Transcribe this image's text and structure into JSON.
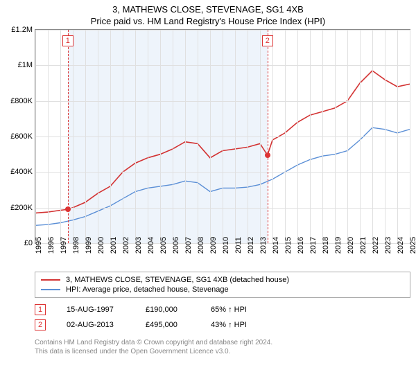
{
  "title": "3, MATHEWS CLOSE, STEVENAGE, SG1 4XB",
  "subtitle": "Price paid vs. HM Land Registry's House Price Index (HPI)",
  "chart": {
    "type": "line",
    "ylim": [
      0,
      1200000
    ],
    "ytick_step": 200000,
    "ytick_labels": [
      "£0",
      "£200K",
      "£400K",
      "£600K",
      "£800K",
      "£1M",
      "£1.2M"
    ],
    "xlim": [
      1995,
      2025
    ],
    "xticks": [
      1995,
      1996,
      1997,
      1998,
      1999,
      2000,
      2001,
      2002,
      2003,
      2004,
      2005,
      2006,
      2007,
      2008,
      2009,
      2010,
      2011,
      2012,
      2013,
      2014,
      2015,
      2016,
      2017,
      2018,
      2019,
      2020,
      2021,
      2022,
      2023,
      2024,
      2025
    ],
    "background_color": "#ffffff",
    "grid_color": "#e0e0e0",
    "band_color": "#eef4fb",
    "band": {
      "start": 1997.6,
      "end": 2013.6
    },
    "series": [
      {
        "name": "price_paid",
        "label": "3, MATHEWS CLOSE, STEVENAGE, SG1 4XB (detached house)",
        "color": "#d33333",
        "width": 1.6,
        "x": [
          1995,
          1996,
          1997,
          1997.6,
          1998,
          1999,
          2000,
          2001,
          2002,
          2003,
          2004,
          2005,
          2006,
          2007,
          2008,
          2009,
          2010,
          2011,
          2012,
          2013,
          2013.6,
          2014,
          2015,
          2016,
          2017,
          2018,
          2019,
          2020,
          2021,
          2022,
          2023,
          2024,
          2025
        ],
        "y": [
          170000,
          175000,
          185000,
          190000,
          200000,
          230000,
          280000,
          320000,
          400000,
          450000,
          480000,
          500000,
          530000,
          570000,
          560000,
          480000,
          520000,
          530000,
          540000,
          560000,
          495000,
          580000,
          620000,
          680000,
          720000,
          740000,
          760000,
          800000,
          900000,
          970000,
          920000,
          880000,
          895000
        ]
      },
      {
        "name": "hpi",
        "label": "HPI: Average price, detached house, Stevenage",
        "color": "#5b8fd6",
        "width": 1.4,
        "x": [
          1995,
          1996,
          1997,
          1998,
          1999,
          2000,
          2001,
          2002,
          2003,
          2004,
          2005,
          2006,
          2007,
          2008,
          2009,
          2010,
          2011,
          2012,
          2013,
          2014,
          2015,
          2016,
          2017,
          2018,
          2019,
          2020,
          2021,
          2022,
          2023,
          2024,
          2025
        ],
        "y": [
          100000,
          105000,
          115000,
          130000,
          150000,
          180000,
          210000,
          250000,
          290000,
          310000,
          320000,
          330000,
          350000,
          340000,
          290000,
          310000,
          310000,
          315000,
          330000,
          360000,
          400000,
          440000,
          470000,
          490000,
          500000,
          520000,
          580000,
          650000,
          640000,
          620000,
          640000
        ]
      }
    ],
    "markers": [
      {
        "n": "1",
        "x": 1997.6,
        "y": 190000
      },
      {
        "n": "2",
        "x": 2013.6,
        "y": 495000
      }
    ]
  },
  "legend": {
    "items": [
      {
        "label": "3, MATHEWS CLOSE, STEVENAGE, SG1 4XB (detached house)",
        "color": "#d33333"
      },
      {
        "label": "HPI: Average price, detached house, Stevenage",
        "color": "#5b8fd6"
      }
    ]
  },
  "datapoints": [
    {
      "n": "1",
      "date": "15-AUG-1997",
      "price": "£190,000",
      "delta": "65% ↑ HPI"
    },
    {
      "n": "2",
      "date": "02-AUG-2013",
      "price": "£495,000",
      "delta": "43% ↑ HPI"
    }
  ],
  "footer": {
    "line1": "Contains HM Land Registry data © Crown copyright and database right 2024.",
    "line2": "This data is licensed under the Open Government Licence v3.0."
  }
}
